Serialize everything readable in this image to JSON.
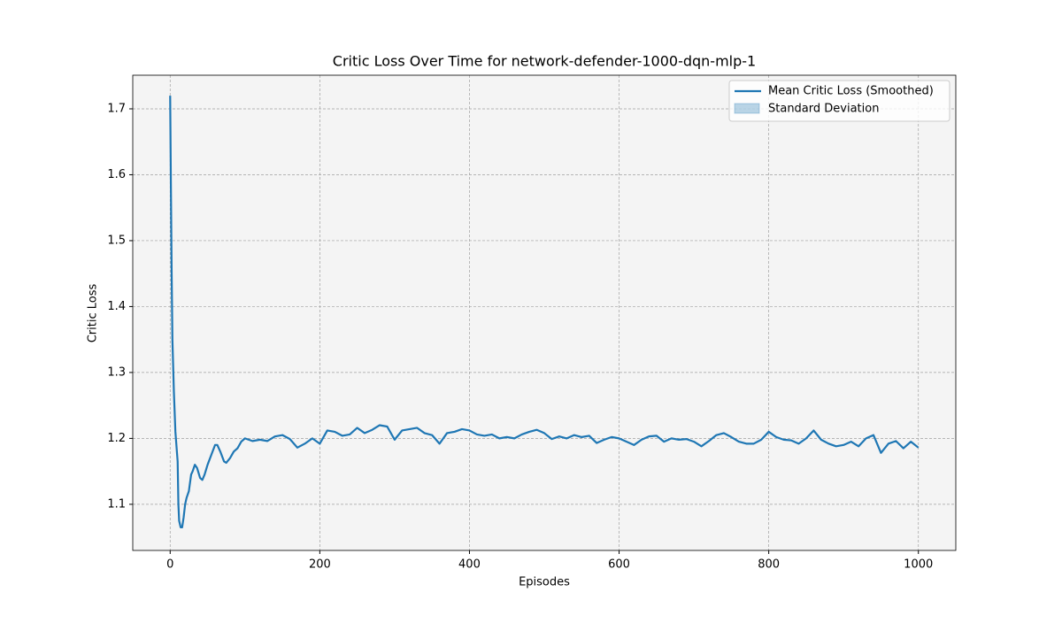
{
  "chart_data": {
    "type": "line",
    "title": "Critic Loss Over Time for network-defender-1000-dqn-mlp-1",
    "x_label": "Episodes",
    "y_label": "Critic Loss",
    "x": [
      0,
      1,
      2,
      3,
      5,
      7,
      9,
      10,
      11,
      12,
      14,
      16,
      18,
      20,
      22,
      25,
      28,
      30,
      33,
      36,
      40,
      43,
      46,
      50,
      55,
      60,
      63,
      67,
      72,
      75,
      80,
      85,
      90,
      95,
      100,
      110,
      120,
      130,
      140,
      150,
      160,
      170,
      180,
      190,
      200,
      210,
      220,
      230,
      240,
      250,
      260,
      270,
      280,
      290,
      300,
      310,
      320,
      330,
      340,
      350,
      360,
      370,
      380,
      390,
      400,
      410,
      420,
      430,
      440,
      450,
      460,
      470,
      480,
      490,
      500,
      510,
      520,
      530,
      540,
      550,
      560,
      570,
      580,
      590,
      600,
      610,
      620,
      630,
      640,
      650,
      660,
      670,
      680,
      690,
      700,
      710,
      720,
      730,
      740,
      750,
      760,
      770,
      780,
      790,
      800,
      810,
      820,
      830,
      840,
      850,
      860,
      870,
      880,
      890,
      900,
      910,
      920,
      930,
      940,
      950,
      960,
      970,
      980,
      990,
      1000
    ],
    "series": [
      {
        "name": "Mean Critic Loss (Smoothed)",
        "color": "#1f77b4",
        "values": [
          1.72,
          1.58,
          1.45,
          1.35,
          1.27,
          1.21,
          1.18,
          1.165,
          1.1,
          1.075,
          1.065,
          1.065,
          1.08,
          1.1,
          1.11,
          1.12,
          1.145,
          1.15,
          1.16,
          1.155,
          1.14,
          1.137,
          1.145,
          1.16,
          1.175,
          1.19,
          1.19,
          1.18,
          1.165,
          1.163,
          1.17,
          1.18,
          1.185,
          1.195,
          1.2,
          1.196,
          1.198,
          1.196,
          1.203,
          1.205,
          1.199,
          1.186,
          1.192,
          1.2,
          1.192,
          1.212,
          1.21,
          1.204,
          1.206,
          1.216,
          1.208,
          1.213,
          1.22,
          1.218,
          1.198,
          1.212,
          1.214,
          1.216,
          1.208,
          1.205,
          1.192,
          1.208,
          1.21,
          1.214,
          1.212,
          1.206,
          1.204,
          1.206,
          1.2,
          1.202,
          1.2,
          1.206,
          1.21,
          1.213,
          1.208,
          1.199,
          1.203,
          1.2,
          1.205,
          1.202,
          1.204,
          1.193,
          1.198,
          1.202,
          1.2,
          1.195,
          1.19,
          1.198,
          1.203,
          1.204,
          1.195,
          1.2,
          1.198,
          1.199,
          1.195,
          1.188,
          1.196,
          1.205,
          1.208,
          1.202,
          1.195,
          1.192,
          1.192,
          1.198,
          1.21,
          1.202,
          1.198,
          1.197,
          1.192,
          1.2,
          1.212,
          1.198,
          1.192,
          1.188,
          1.19,
          1.195,
          1.188,
          1.2,
          1.205,
          1.178,
          1.192,
          1.196,
          1.185,
          1.195,
          1.186
        ]
      }
    ],
    "band": {
      "name": "Standard Deviation",
      "color": "#1f77b4"
    },
    "xlim": [
      -50,
      1050
    ],
    "ylim": [
      1.03,
      1.751
    ],
    "xticks": [
      0,
      200,
      400,
      600,
      800,
      1000
    ],
    "yticks": [
      1.1,
      1.2,
      1.3,
      1.4,
      1.5,
      1.6,
      1.7
    ],
    "grid": true,
    "legend": "upper-right"
  }
}
